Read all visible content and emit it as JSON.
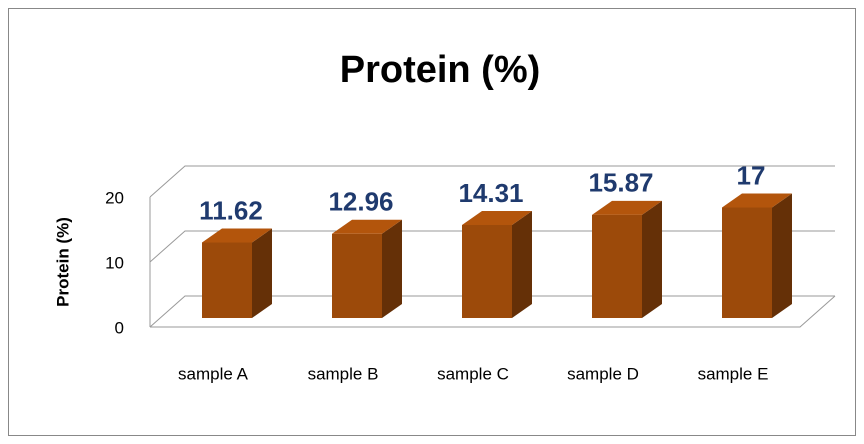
{
  "chart_data": {
    "type": "bar3d",
    "title": "Protein (%)",
    "y_label": "Protein (%)",
    "categories": [
      "sample A",
      "sample B",
      "sample C",
      "sample D",
      "sample E"
    ],
    "values": [
      11.62,
      12.96,
      14.31,
      15.87,
      17
    ],
    "color": "#9c4a0a",
    "ylim": [
      0,
      20
    ],
    "yticks": [
      0,
      10,
      20
    ],
    "grid": true
  }
}
